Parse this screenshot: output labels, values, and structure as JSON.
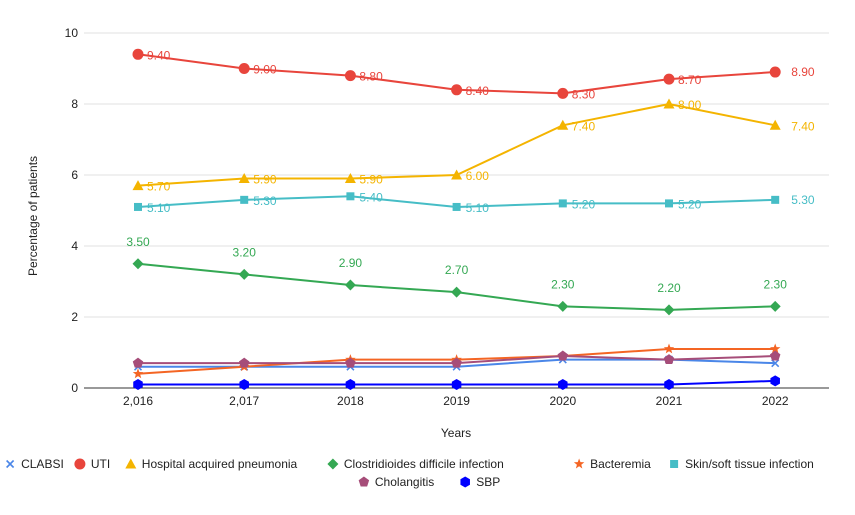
{
  "chart_data": {
    "type": "line",
    "title": "",
    "xlabel": "Years",
    "ylabel": "Percentage of patients",
    "x": [
      "2,016",
      "2,017",
      "2018",
      "2019",
      "2020",
      "2021",
      "2022"
    ],
    "ylim": [
      0,
      10
    ],
    "yticks": [
      "0",
      "2",
      "4",
      "6",
      "8",
      "10"
    ],
    "grid": true,
    "legend_position": "bottom",
    "series": [
      {
        "name": "CLABSI",
        "color": "#4a86e8",
        "marker": "x",
        "values": [
          0.6,
          0.6,
          0.6,
          0.6,
          0.8,
          0.8,
          0.7
        ],
        "labels": []
      },
      {
        "name": "UTI",
        "color": "#e8453c",
        "marker": "circle",
        "values": [
          9.4,
          9.0,
          8.8,
          8.4,
          8.3,
          8.7,
          8.9
        ],
        "labels": [
          "9.40",
          "9.00",
          "8.80",
          "8.40",
          "8.30",
          "8.70",
          "8.90"
        ]
      },
      {
        "name": "Hospital acquired pneumonia",
        "color": "#f4b400",
        "marker": "triangle",
        "values": [
          5.7,
          5.9,
          5.9,
          6.0,
          7.4,
          8.0,
          7.4
        ],
        "labels": [
          "5.70",
          "5.90",
          "5.90",
          "6.00",
          "7.40",
          "8.00",
          "7.40"
        ]
      },
      {
        "name": "Clostridioides difficile infection",
        "color": "#34a853",
        "marker": "diamond",
        "values": [
          3.5,
          3.2,
          2.9,
          2.7,
          2.3,
          2.2,
          2.3
        ],
        "labels": [
          "3.50",
          "3.20",
          "2.90",
          "2.70",
          "2.30",
          "2.20",
          "2.30"
        ]
      },
      {
        "name": "Bacteremia",
        "color": "#f46524",
        "marker": "star",
        "values": [
          0.4,
          0.6,
          0.8,
          0.8,
          0.9,
          1.1,
          1.1
        ],
        "labels": []
      },
      {
        "name": "Skin/soft tissue infection",
        "color": "#46bdc6",
        "marker": "square",
        "values": [
          5.1,
          5.3,
          5.4,
          5.1,
          5.2,
          5.2,
          5.3
        ],
        "labels": [
          "5.10",
          "5.30",
          "5.40",
          "5.10",
          "5.20",
          "5.20",
          "5.30"
        ]
      },
      {
        "name": "Cholangitis",
        "color": "#a64d79",
        "marker": "pentagon",
        "values": [
          0.7,
          0.7,
          0.7,
          0.7,
          0.9,
          0.8,
          0.9
        ],
        "labels": []
      },
      {
        "name": "SBP",
        "color": "#0000ff",
        "marker": "hexagon",
        "values": [
          0.1,
          0.1,
          0.1,
          0.1,
          0.1,
          0.1,
          0.2
        ],
        "labels": []
      }
    ]
  }
}
